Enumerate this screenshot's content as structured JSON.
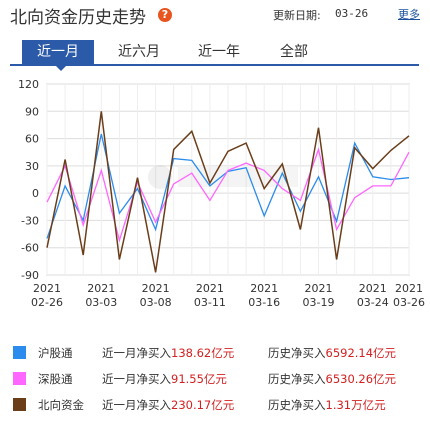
{
  "header": {
    "title": "北向资金历史走势",
    "help_glyph": "?",
    "update_label": "更新日期:",
    "update_date": "03-26",
    "more_label": "更多"
  },
  "tabs": [
    {
      "label": "近一月",
      "active": true
    },
    {
      "label": "近六月",
      "active": false
    },
    {
      "label": "近一年",
      "active": false
    },
    {
      "label": "全部",
      "active": false
    }
  ],
  "chart_data": {
    "type": "line",
    "ylim": [
      -90,
      120
    ],
    "y_ticks": [
      120,
      90,
      60,
      30,
      0,
      -30,
      -60,
      -90
    ],
    "x_tick_labels": [
      {
        "year": "2021",
        "date": "02-26",
        "index": 0
      },
      {
        "year": "2021",
        "date": "03-03",
        "index": 3
      },
      {
        "year": "2021",
        "date": "03-08",
        "index": 6
      },
      {
        "year": "2021",
        "date": "03-11",
        "index": 9
      },
      {
        "year": "2021",
        "date": "03-16",
        "index": 12
      },
      {
        "year": "2021",
        "date": "03-19",
        "index": 15
      },
      {
        "year": "2021",
        "date": "03-24",
        "index": 18
      },
      {
        "year": "2021",
        "date": "03-26",
        "index": 20
      }
    ],
    "n_points": 21,
    "grid": true,
    "series": [
      {
        "name": "沪股通",
        "color": "#2b8ced",
        "values": [
          -50,
          8,
          -30,
          65,
          -22,
          5,
          -40,
          38,
          36,
          8,
          24,
          28,
          -25,
          22,
          -20,
          18,
          -31,
          55,
          18,
          15,
          17
        ]
      },
      {
        "name": "深股通",
        "color": "#ff66ff",
        "values": [
          -10,
          30,
          -35,
          25,
          -52,
          12,
          -32,
          10,
          22,
          -8,
          25,
          33,
          25,
          5,
          -8,
          48,
          -40,
          -5,
          8,
          8,
          45
        ]
      },
      {
        "name": "北向资金",
        "color": "#6b3e1a",
        "values": [
          -60,
          37,
          -68,
          90,
          -73,
          17,
          -87,
          48,
          68,
          11,
          46,
          55,
          5,
          32,
          -40,
          72,
          -73,
          50,
          27,
          47,
          63
        ]
      }
    ]
  },
  "legend": [
    {
      "name": "沪股通",
      "color": "#2b8ced",
      "month_label": "近一月净买入",
      "month_value": "138.62亿元",
      "hist_label": "历史净买入",
      "hist_value": "6592.14亿元"
    },
    {
      "name": "深股通",
      "color": "#ff66ff",
      "month_label": "近一月净买入",
      "month_value": "91.55亿元",
      "hist_label": "历史净买入",
      "hist_value": "6530.26亿元"
    },
    {
      "name": "北向资金",
      "color": "#6b3e1a",
      "month_label": "近一月净买入",
      "month_value": "230.17亿元",
      "hist_label": "历史净买入",
      "hist_value": "1.31万亿元"
    }
  ]
}
